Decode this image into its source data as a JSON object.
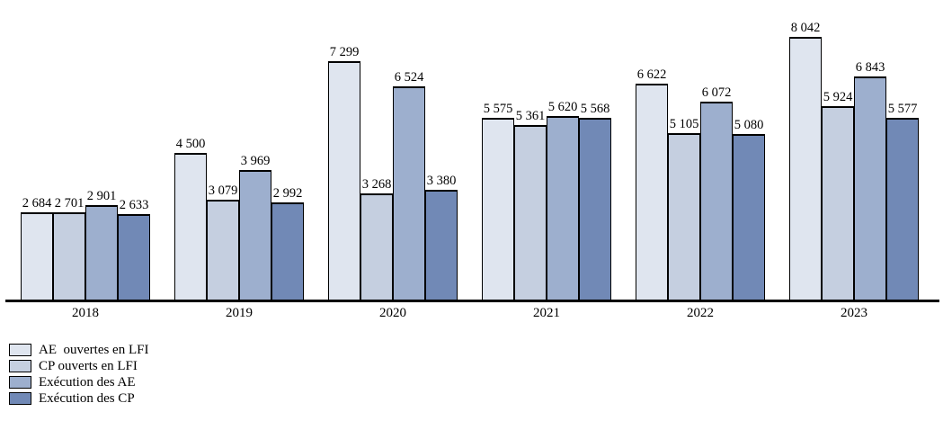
{
  "chart_data": {
    "type": "bar",
    "title": "",
    "xlabel": "",
    "ylabel": "",
    "categories": [
      "2018",
      "2019",
      "2020",
      "2021",
      "2022",
      "2023"
    ],
    "series": [
      {
        "name": "AE  ouvertes en LFI",
        "color": "#dfe5ef",
        "values": [
          2684,
          4500,
          7299,
          5575,
          6622,
          8042
        ]
      },
      {
        "name": "CP ouverts en LFI",
        "color": "#c5cfe0",
        "values": [
          2701,
          3079,
          3268,
          5361,
          5105,
          5924
        ]
      },
      {
        "name": "Exécution des AE",
        "color": "#9dafce",
        "values": [
          2901,
          3969,
          6524,
          5620,
          6072,
          6843
        ]
      },
      {
        "name": "Exécution des CP",
        "color": "#7189b6",
        "values": [
          2633,
          2992,
          3380,
          5568,
          5080,
          5577
        ]
      }
    ],
    "ylim": [
      0,
      9000
    ],
    "grid": false,
    "y_axis_visible": false,
    "value_labels": "above-bars, thousands separated by space",
    "bar_border_color": "#000000",
    "axis_color": "#000000",
    "legend_position": "bottom-left"
  }
}
